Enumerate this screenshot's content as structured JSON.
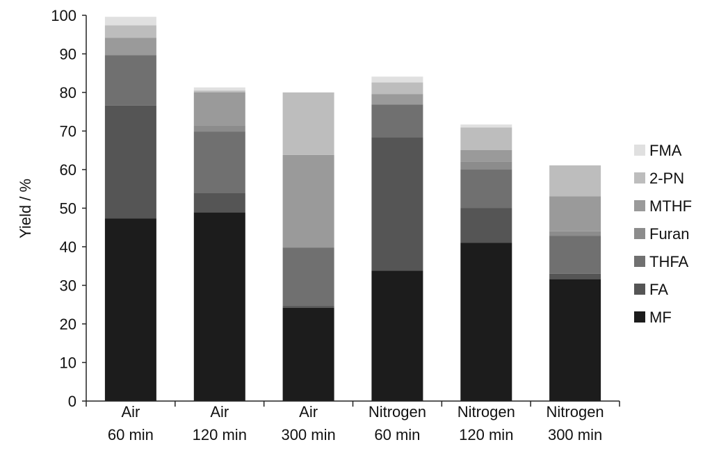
{
  "chart_data": {
    "type": "bar",
    "stacked": true,
    "title": "",
    "xlabel": "",
    "ylabel": "Yield / %",
    "ylim": [
      0,
      100
    ],
    "yticks": [
      0,
      10,
      20,
      30,
      40,
      50,
      60,
      70,
      80,
      90,
      100
    ],
    "legend_position": "right",
    "grid": false,
    "categories": [
      [
        "Air",
        "60 min"
      ],
      [
        "Air",
        "120 min"
      ],
      [
        "Air",
        "300 min"
      ],
      [
        "Nitrogen",
        "60 min"
      ],
      [
        "Nitrogen",
        "120 min"
      ],
      [
        "Nitrogen",
        "300 min"
      ]
    ],
    "series": [
      {
        "name": "MF",
        "color": "#1c1c1c",
        "values": [
          47.3,
          48.9,
          24.2,
          33.8,
          41.0,
          31.6
        ]
      },
      {
        "name": "FA",
        "color": "#555555",
        "values": [
          29.3,
          5.1,
          0.4,
          34.6,
          9.0,
          1.4
        ]
      },
      {
        "name": "THFA",
        "color": "#707070",
        "values": [
          13.1,
          15.9,
          15.2,
          8.5,
          10.0,
          9.8
        ]
      },
      {
        "name": "Furan",
        "color": "#8c8c8c",
        "values": [
          0.0,
          1.6,
          0.0,
          0.0,
          2.1,
          1.2
        ]
      },
      {
        "name": "MTHF",
        "color": "#9a9a9a",
        "values": [
          4.5,
          8.5,
          24.0,
          2.7,
          3.0,
          9.1
        ]
      },
      {
        "name": "2-PN",
        "color": "#bdbdbd",
        "values": [
          3.2,
          0.5,
          16.2,
          3.0,
          5.8,
          8.0
        ]
      },
      {
        "name": "FMA",
        "color": "#e0e0e0",
        "values": [
          2.2,
          0.8,
          0.0,
          1.5,
          0.8,
          0.0
        ]
      }
    ],
    "legend_order": [
      "FMA",
      "2-PN",
      "MTHF",
      "Furan",
      "THFA",
      "FA",
      "MF"
    ]
  }
}
